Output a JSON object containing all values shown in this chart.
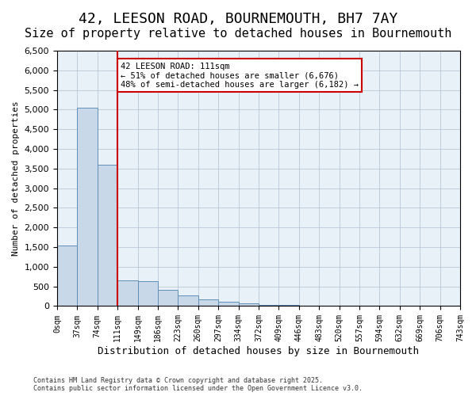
{
  "title": "42, LEESON ROAD, BOURNEMOUTH, BH7 7AY",
  "subtitle": "Size of property relative to detached houses in Bournemouth",
  "xlabel": "Distribution of detached houses by size in Bournemouth",
  "ylabel": "Number of detached properties",
  "bin_labels": [
    "0sqm",
    "37sqm",
    "74sqm",
    "111sqm",
    "149sqm",
    "186sqm",
    "223sqm",
    "260sqm",
    "297sqm",
    "334sqm",
    "372sqm",
    "409sqm",
    "446sqm",
    "483sqm",
    "520sqm",
    "557sqm",
    "594sqm",
    "632sqm",
    "669sqm",
    "706sqm",
    "743sqm"
  ],
  "bar_values": [
    1550,
    5050,
    3600,
    650,
    630,
    410,
    280,
    165,
    115,
    60,
    30,
    20,
    10,
    5,
    3,
    2,
    1,
    1,
    0,
    0
  ],
  "bar_color": "#c8d8e8",
  "bar_edge_color": "#6090b8",
  "vline_x": 3,
  "vline_color": "#cc0000",
  "annotation_text": "42 LEESON ROAD: 111sqm\n← 51% of detached houses are smaller (6,676)\n48% of semi-detached houses are larger (6,182) →",
  "annotation_box_color": "#ffffff",
  "annotation_box_edge_color": "#cc0000",
  "ylim": [
    0,
    6500
  ],
  "yticks": [
    0,
    500,
    1000,
    1500,
    2000,
    2500,
    3000,
    3500,
    4000,
    4500,
    5000,
    5500,
    6000,
    6500
  ],
  "background_color": "#e8f0f8",
  "footer_line1": "Contains HM Land Registry data © Crown copyright and database right 2025.",
  "footer_line2": "Contains public sector information licensed under the Open Government Licence v3.0.",
  "title_fontsize": 13,
  "subtitle_fontsize": 11
}
